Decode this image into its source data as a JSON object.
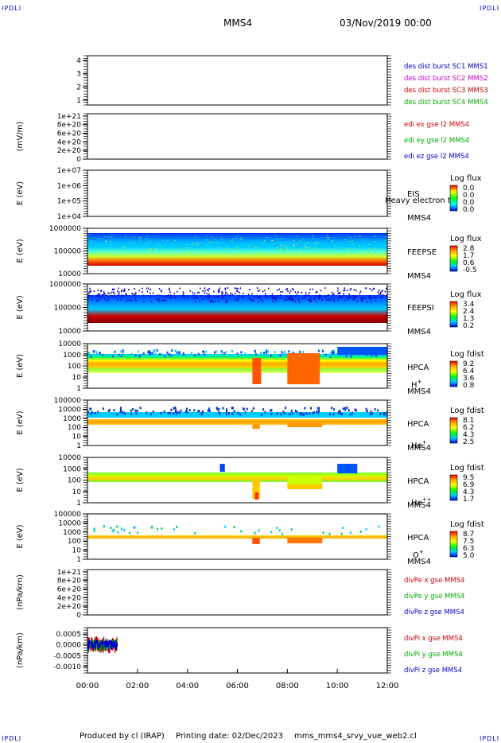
{
  "corners": {
    "tl": "IPDLI",
    "tr": "IPDLI",
    "bl": "IPDLI",
    "br": "IPDLI"
  },
  "header": {
    "spacecraft": "MMS4",
    "date": "03/Nov/2019 00:00"
  },
  "footer": {
    "produced_by": "Produced by cl (IRAP)",
    "printing_date": "Printing date: 02/Dec/2023",
    "script": "mms_mms4_srvy_vue_web2.cl"
  },
  "colors": {
    "blue": "#0000cc",
    "magenta": "#cc00cc",
    "red": "#cc0000",
    "green": "#00aa00",
    "cbar_eis": [
      "#ff0000",
      "#ffff00",
      "#00ff00",
      "#00ffff",
      "#0000ff"
    ],
    "cbar": [
      "#ff0000",
      "#ffaa00",
      "#ffff00",
      "#00ff00",
      "#00ccff",
      "#0000ff"
    ]
  },
  "chart_data": [
    {
      "id": "p1",
      "type": "line",
      "title": "",
      "ylabel": "",
      "yticks": [
        "1",
        "2",
        "3",
        "4"
      ],
      "legend": [
        {
          "text": "des dist burst SC1 MMS1",
          "color": "blue"
        },
        {
          "text": "des dist burst SC2 MMS2",
          "color": "magenta"
        },
        {
          "text": "des dist burst SC3 MMS3",
          "color": "red"
        },
        {
          "text": "des dist burst SC4 MMS4",
          "color": "green"
        }
      ]
    },
    {
      "id": "p2",
      "type": "line",
      "ylabel": "(mV/m)",
      "yticks": [
        "0",
        "2e+20",
        "4e+20",
        "6e+20",
        "8e+20",
        "1e+21"
      ],
      "zero_line": true,
      "legend": [
        {
          "text": "edi ex gse l2 MMS4",
          "color": "red"
        },
        {
          "text": "edi ey gse l2 MMS4",
          "color": "green"
        },
        {
          "text": "edi ez gse l2 MMS4",
          "color": "blue"
        }
      ]
    },
    {
      "id": "p3",
      "type": "heatmap",
      "ylabel": "E (eV)",
      "yticks": [
        "1e+04",
        "1e+05",
        "1e+06",
        "1e+07"
      ],
      "instrument": [
        "EIS",
        "MMS4"
      ],
      "overlay_text": "Heavy electron to",
      "cbar_title": "Log flux",
      "cbar_ticks": [
        "0.0",
        "0.0",
        "0.0",
        "0.0"
      ],
      "cbar": "cbar_eis"
    },
    {
      "id": "p4",
      "type": "heatmap",
      "ylabel": "E (eV)",
      "yticks": [
        "10000",
        "100000",
        "1000000"
      ],
      "instrument": [
        "FEEPSE",
        "MMS4"
      ],
      "cbar_title": "Log flux",
      "cbar_ticks": [
        "2.8",
        "1.7",
        "0.6",
        "-0.5"
      ],
      "cbar": "cbar"
    },
    {
      "id": "p5",
      "type": "heatmap",
      "ylabel": "E (eV)",
      "yticks": [
        "10000",
        "100000",
        "1000000"
      ],
      "instrument": [
        "FEEPSI",
        "MMS4"
      ],
      "cbar_title": "Log flux",
      "cbar_ticks": [
        "3.4",
        "2.4",
        "1.3",
        "0.2"
      ],
      "cbar": "cbar"
    },
    {
      "id": "p6",
      "type": "heatmap",
      "ylabel": "E (eV)",
      "yticks": [
        "1",
        "10",
        "100",
        "1000",
        "10000"
      ],
      "instrument": [
        "HPCA",
        "MMS4"
      ],
      "species": "H",
      "species_sup": "+",
      "cbar_title": "Log fdist",
      "cbar_ticks": [
        "9.2",
        "6.4",
        "3.6",
        "0.8"
      ],
      "cbar": "cbar"
    },
    {
      "id": "p7",
      "type": "heatmap",
      "ylabel": "E (eV)",
      "yticks": [
        "1",
        "10",
        "100",
        "1000",
        "10000",
        "100000"
      ],
      "instrument": [
        "HPCA",
        "MMS4"
      ],
      "species": "He",
      "species_sup": "+",
      "cbar_title": "Log fdist",
      "cbar_ticks": [
        "8.1",
        "6.2",
        "4.3",
        "2.5"
      ],
      "cbar": "cbar"
    },
    {
      "id": "p8",
      "type": "heatmap",
      "ylabel": "E (eV)",
      "yticks": [
        "1",
        "10",
        "100",
        "1000",
        "10000"
      ],
      "instrument": [
        "HPCA",
        "MMS4"
      ],
      "species": "He",
      "species_sup": "++",
      "cbar_title": "Log fdist",
      "cbar_ticks": [
        "9.5",
        "6.9",
        "4.3",
        "1.7"
      ],
      "cbar": "cbar"
    },
    {
      "id": "p9",
      "type": "heatmap",
      "ylabel": "E (eV)",
      "yticks": [
        "1",
        "10",
        "100",
        "1000",
        "10000",
        "100000"
      ],
      "instrument": [
        "HPCA",
        "MMS4"
      ],
      "species": "O",
      "species_sup": "+",
      "cbar_title": "Log fdist",
      "cbar_ticks": [
        "8.7",
        "7.5",
        "6.3",
        "5.0"
      ],
      "cbar": "cbar"
    },
    {
      "id": "p10",
      "type": "line",
      "ylabel": "(nPa/km)",
      "yticks": [
        "0",
        "2e+20",
        "4e+20",
        "6e+20",
        "8e+20",
        "1e+21"
      ],
      "zero_line": true,
      "legend": [
        {
          "text": "divPe x gse MMS4",
          "color": "red"
        },
        {
          "text": "divPe y gse MMS4",
          "color": "green"
        },
        {
          "text": "divPe z gse MMS4",
          "color": "blue"
        }
      ]
    },
    {
      "id": "p11",
      "type": "line",
      "ylabel": "(nPa/km)",
      "yticks": [
        "-0.0010",
        "-0.0005",
        "0.0000",
        "0.0005"
      ],
      "ylim": [
        -0.0013,
        0.0008
      ],
      "zero_line": true,
      "data_extent_hours": [
        0,
        1.2
      ],
      "legend": [
        {
          "text": "divPi x gse MMS4",
          "color": "red"
        },
        {
          "text": "divPi y gse MMS4",
          "color": "green"
        },
        {
          "text": "divPi z gse MMS4",
          "color": "blue"
        }
      ]
    }
  ],
  "xaxis": {
    "ticks": [
      "00:00",
      "02:00",
      "04:00",
      "06:00",
      "08:00",
      "10:00",
      "12:00"
    ],
    "range_hours": [
      0,
      12
    ]
  }
}
